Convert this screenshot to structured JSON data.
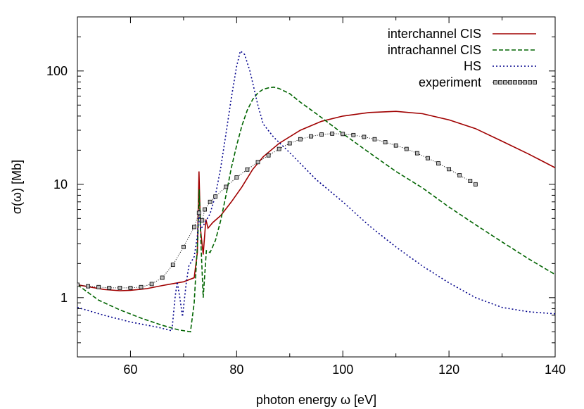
{
  "chart_data": {
    "type": "line",
    "xlabel": "photon energy  ω [eV]",
    "ylabel": "σ(ω) [Mb]",
    "xlim": [
      50,
      140
    ],
    "ylim": [
      0.3,
      300
    ],
    "yscale": "log",
    "x_ticks": [
      60,
      80,
      100,
      120,
      140
    ],
    "y_ticks": [
      1,
      10,
      100
    ],
    "x_tick_labels": [
      "60",
      "80",
      "100",
      "120",
      "140"
    ],
    "y_tick_labels": [
      "1",
      "10",
      "100"
    ],
    "legend_position": "top-right",
    "grid": false,
    "series": [
      {
        "name": "interchannel CIS",
        "color": "#a00000",
        "dash": "solid",
        "points": [
          [
            50,
            1.3
          ],
          [
            52,
            1.25
          ],
          [
            55,
            1.18
          ],
          [
            58,
            1.15
          ],
          [
            60,
            1.16
          ],
          [
            63,
            1.2
          ],
          [
            66,
            1.28
          ],
          [
            68,
            1.33
          ],
          [
            70,
            1.38
          ],
          [
            72,
            1.5
          ],
          [
            72.6,
            2.5
          ],
          [
            72.9,
            13
          ],
          [
            73.2,
            4
          ],
          [
            73.7,
            2.4
          ],
          [
            74.2,
            4.9
          ],
          [
            74.6,
            4.1
          ],
          [
            75.5,
            4.6
          ],
          [
            77,
            5.3
          ],
          [
            79,
            7
          ],
          [
            81,
            9.5
          ],
          [
            83,
            13.5
          ],
          [
            85,
            17.5
          ],
          [
            88,
            23
          ],
          [
            92,
            30
          ],
          [
            96,
            36
          ],
          [
            100,
            40
          ],
          [
            105,
            43
          ],
          [
            110,
            44
          ],
          [
            115,
            42
          ],
          [
            120,
            37
          ],
          [
            125,
            31
          ],
          [
            130,
            24
          ],
          [
            135,
            18.5
          ],
          [
            140,
            14
          ]
        ]
      },
      {
        "name": "intrachannel CIS",
        "color": "#006400",
        "dash": "6,3",
        "points": [
          [
            50,
            1.3
          ],
          [
            54,
            0.95
          ],
          [
            58,
            0.78
          ],
          [
            62,
            0.66
          ],
          [
            66,
            0.57
          ],
          [
            69,
            0.52
          ],
          [
            71.3,
            0.5
          ],
          [
            72,
            0.9
          ],
          [
            72.7,
            3.5
          ],
          [
            72.95,
            9
          ],
          [
            73.3,
            2.8
          ],
          [
            73.7,
            1.0
          ],
          [
            74.3,
            2.6
          ],
          [
            75,
            2.5
          ],
          [
            76,
            3.2
          ],
          [
            77,
            4.8
          ],
          [
            78,
            8
          ],
          [
            79,
            14
          ],
          [
            80,
            22
          ],
          [
            81,
            33
          ],
          [
            82,
            45
          ],
          [
            83,
            56
          ],
          [
            84,
            64
          ],
          [
            85,
            69
          ],
          [
            86,
            71
          ],
          [
            87,
            72
          ],
          [
            88,
            70
          ],
          [
            90,
            63
          ],
          [
            92,
            53
          ],
          [
            95,
            42
          ],
          [
            100,
            28
          ],
          [
            105,
            19
          ],
          [
            110,
            13
          ],
          [
            115,
            9.3
          ],
          [
            120,
            6.3
          ],
          [
            125,
            4.4
          ],
          [
            130,
            3.1
          ],
          [
            135,
            2.2
          ],
          [
            140,
            1.6
          ]
        ]
      },
      {
        "name": "HS",
        "color": "#00008b",
        "dash": "2,3",
        "points": [
          [
            50,
            0.82
          ],
          [
            55,
            0.7
          ],
          [
            60,
            0.61
          ],
          [
            65,
            0.55
          ],
          [
            67.8,
            0.51
          ],
          [
            68.4,
            1.0
          ],
          [
            68.8,
            1.38
          ],
          [
            69.3,
            1.0
          ],
          [
            69.8,
            0.68
          ],
          [
            70.5,
            1.35
          ],
          [
            71,
            1.9
          ],
          [
            72,
            2.3
          ],
          [
            72.6,
            3.5
          ],
          [
            72.9,
            6
          ],
          [
            73.2,
            4
          ],
          [
            73.8,
            4.4
          ],
          [
            75,
            5.5
          ],
          [
            76,
            8
          ],
          [
            77,
            14
          ],
          [
            78,
            28
          ],
          [
            79,
            58
          ],
          [
            80,
            110
          ],
          [
            80.7,
            150
          ],
          [
            81.5,
            140
          ],
          [
            82.5,
            100
          ],
          [
            84,
            50
          ],
          [
            85,
            34
          ],
          [
            87,
            26
          ],
          [
            90,
            19
          ],
          [
            95,
            11
          ],
          [
            100,
            7
          ],
          [
            105,
            4.3
          ],
          [
            110,
            2.8
          ],
          [
            115,
            1.9
          ],
          [
            120,
            1.35
          ],
          [
            125,
            1.0
          ],
          [
            130,
            0.82
          ],
          [
            135,
            0.75
          ],
          [
            140,
            0.72
          ]
        ]
      },
      {
        "name": "experiment",
        "color": "#000000",
        "dash": "1,2",
        "marker": "square",
        "points": [
          [
            50,
            1.3
          ],
          [
            52,
            1.26
          ],
          [
            54,
            1.24
          ],
          [
            56,
            1.22
          ],
          [
            58,
            1.22
          ],
          [
            60,
            1.22
          ],
          [
            62,
            1.24
          ],
          [
            64,
            1.32
          ],
          [
            66,
            1.5
          ],
          [
            68,
            1.95
          ],
          [
            70,
            2.8
          ],
          [
            72,
            4.2
          ],
          [
            72.9,
            5.6
          ],
          [
            73.5,
            4.8
          ],
          [
            74,
            6
          ],
          [
            75,
            7
          ],
          [
            76,
            7.8
          ],
          [
            78,
            9.5
          ],
          [
            80,
            11.5
          ],
          [
            82,
            13.5
          ],
          [
            84,
            15.7
          ],
          [
            86,
            18
          ],
          [
            88,
            20.5
          ],
          [
            90,
            23
          ],
          [
            92,
            25
          ],
          [
            94,
            26.5
          ],
          [
            96,
            27.5
          ],
          [
            98,
            28
          ],
          [
            100,
            27.8
          ],
          [
            102,
            27.2
          ],
          [
            104,
            26.2
          ],
          [
            106,
            25
          ],
          [
            108,
            23.5
          ],
          [
            110,
            22
          ],
          [
            112,
            20.5
          ],
          [
            114,
            18.8
          ],
          [
            116,
            17
          ],
          [
            118,
            15.3
          ],
          [
            120,
            13.6
          ],
          [
            122,
            12
          ],
          [
            124,
            10.7
          ],
          [
            125,
            10
          ]
        ]
      }
    ]
  }
}
